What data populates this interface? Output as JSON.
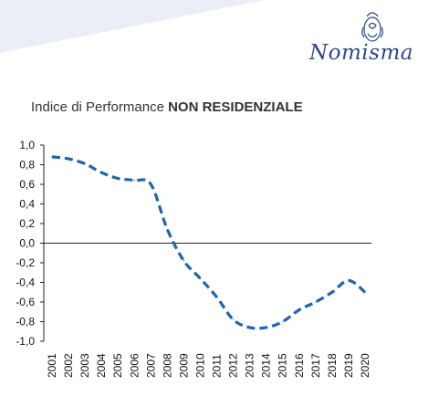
{
  "brand": {
    "name": "Nomisma",
    "logo_icon": "nomisma-emblem-icon"
  },
  "colors": {
    "series": "#1f64b0",
    "band": "#e9eef7",
    "brand": "#2c4a8c"
  },
  "chart_data": {
    "type": "line",
    "title": "Indice di Performance",
    "title_emphasis": "NON RESIDENZIALE",
    "xlabel": "",
    "ylabel": "",
    "ylim": [
      -1.0,
      1.0
    ],
    "yticks": [
      "1,0",
      "0,8",
      "0,6",
      "0,4",
      "0,2",
      "0,0",
      "-0,2",
      "-0,4",
      "-0,6",
      "-0,8",
      "-1,0"
    ],
    "ytick_values": [
      1.0,
      0.8,
      0.6,
      0.4,
      0.2,
      0.0,
      -0.2,
      -0.4,
      -0.6,
      -0.8,
      -1.0
    ],
    "grid": false,
    "line_style": "dashed",
    "x": [
      "2001",
      "2002",
      "2003",
      "2004",
      "2005",
      "2006",
      "2007",
      "2008",
      "2009",
      "2010",
      "2011",
      "2012",
      "2013",
      "2014",
      "2015",
      "2016",
      "2017",
      "2018",
      "2019",
      "2020"
    ],
    "series": [
      {
        "values": [
          0.88,
          0.86,
          0.81,
          0.72,
          0.66,
          0.64,
          0.6,
          0.14,
          -0.18,
          -0.36,
          -0.55,
          -0.78,
          -0.86,
          -0.86,
          -0.8,
          -0.68,
          -0.6,
          -0.5,
          -0.38,
          -0.5
        ]
      }
    ]
  }
}
